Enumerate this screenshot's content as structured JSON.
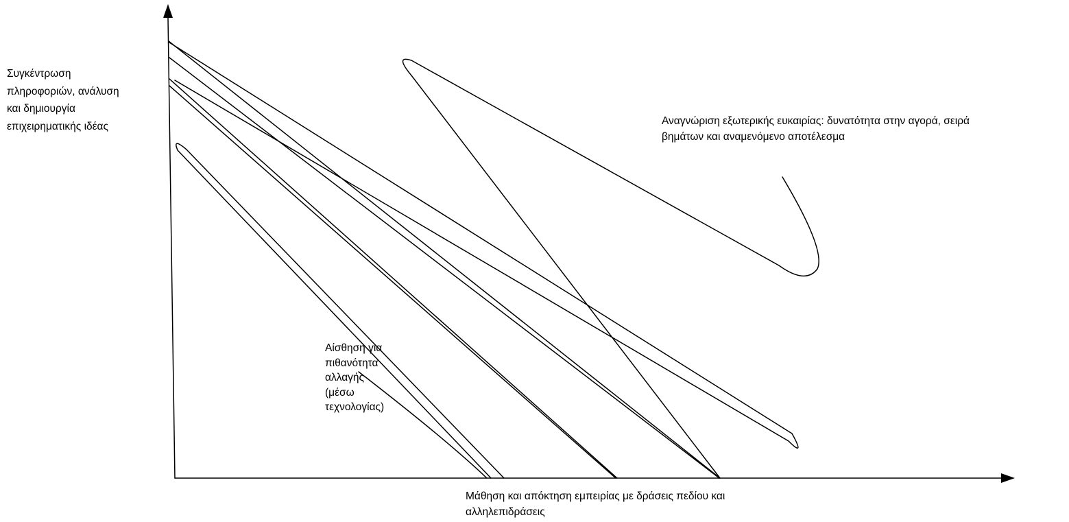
{
  "diagram": {
    "colors": {
      "stroke": "#000000",
      "background": "#ffffff",
      "text": "#000000"
    },
    "y_axis_label": {
      "lines": [
        "Συγκέντρωση",
        "πληροφοριών, ανάλυση",
        "και δημιουργία",
        "επιχειρηματικής ιδέας"
      ]
    },
    "opportunity_label": {
      "lines": [
        "Αναγνώριση εξωτερικής ευκαιρίας: δυνατότητα στην αγορά, σειρά",
        "βημάτων και  αναμενόμενο αποτέλεσμα"
      ]
    },
    "feel_label": {
      "lines": [
        "Αίσθηση για",
        "πιθανότητα",
        "αλλαγής",
        "(μέσω",
        "τεχνολογίας)"
      ]
    },
    "x_axis_label": {
      "lines": [
        "Μάθηση και απόκτηση εμπειρίας με δράσεις πεδίου και",
        "αλληλεπιδράσεις"
      ]
    }
  }
}
